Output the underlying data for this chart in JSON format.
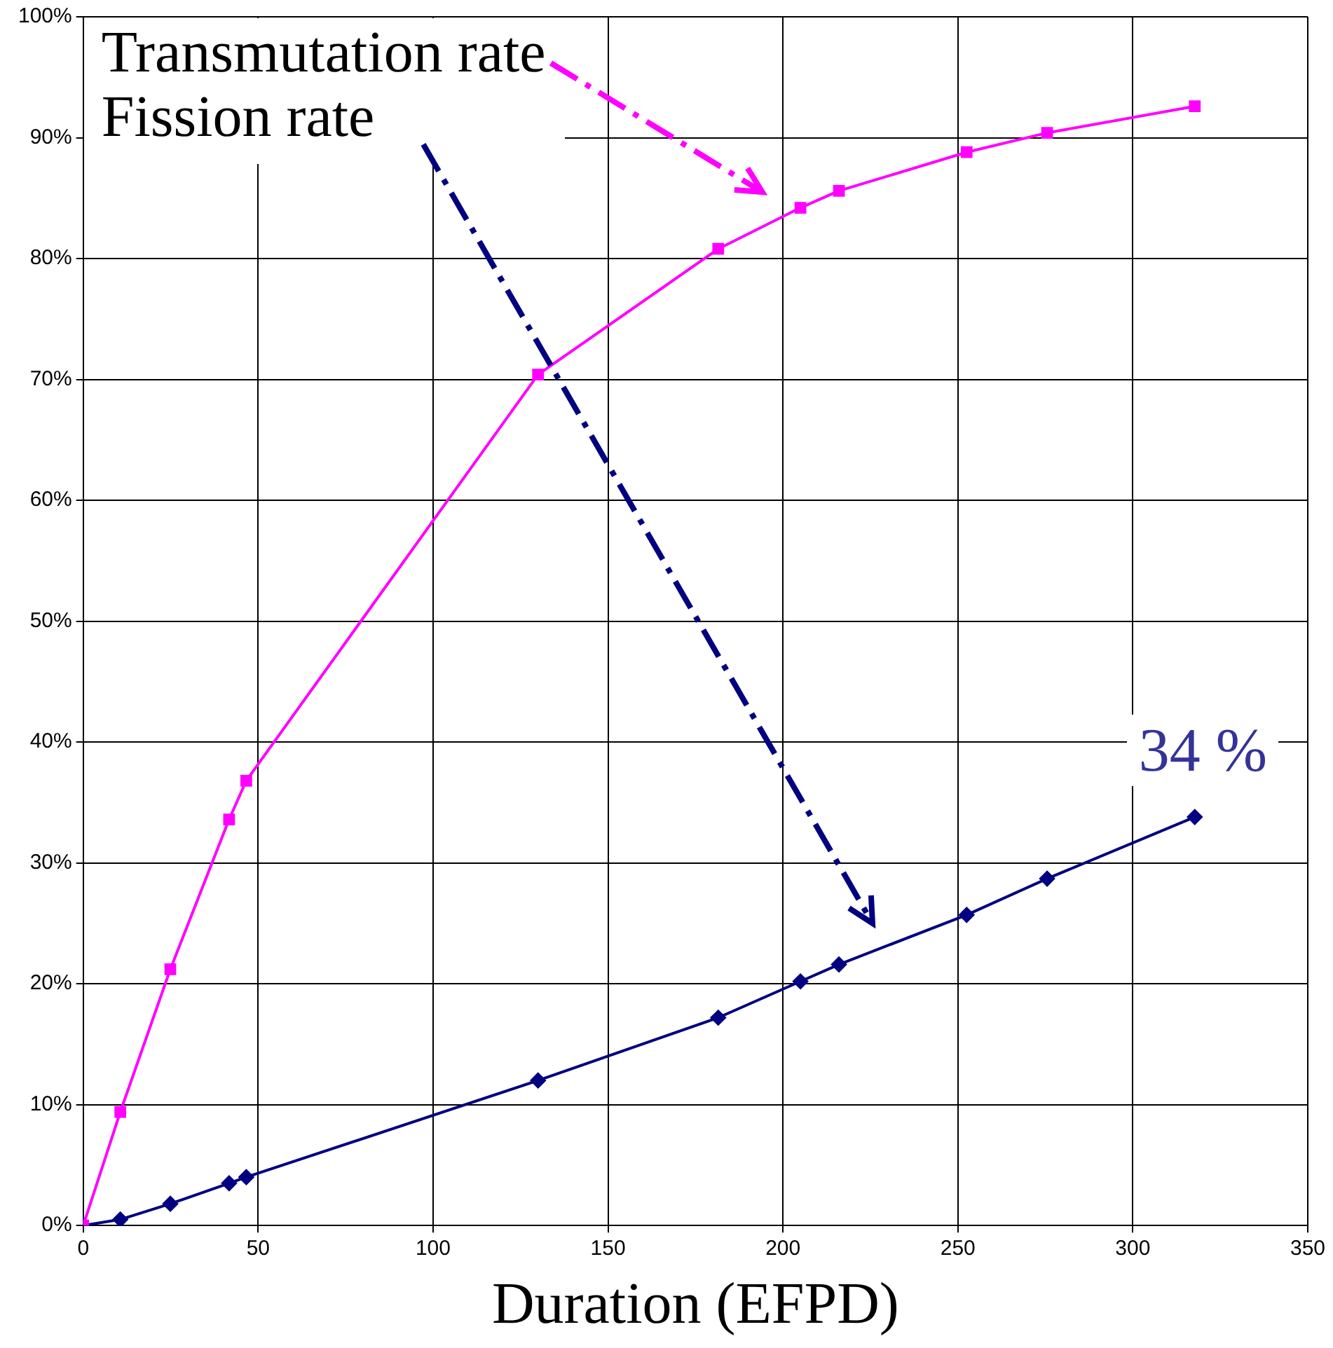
{
  "chart_data": {
    "type": "line",
    "xlabel": "Duration (EFPD)",
    "xlim": [
      0,
      350
    ],
    "xticks": [
      0,
      50,
      100,
      150,
      200,
      250,
      300,
      350
    ],
    "ylim": [
      0,
      100
    ],
    "yticks": [
      {
        "value": 0,
        "label": "0%"
      },
      {
        "value": 10,
        "label": "10%"
      },
      {
        "value": 20,
        "label": "20%"
      },
      {
        "value": 30,
        "label": "30%"
      },
      {
        "value": 40,
        "label": "40%"
      },
      {
        "value": 50,
        "label": "50%"
      },
      {
        "value": 60,
        "label": "60%"
      },
      {
        "value": 70,
        "label": "70%"
      },
      {
        "value": 80,
        "label": "80%"
      },
      {
        "value": 90,
        "label": "90%"
      },
      {
        "value": 100,
        "label": "100%"
      }
    ],
    "x": [
      0,
      10.6,
      24.9,
      41.7,
      46.6,
      130,
      181.5,
      205,
      216,
      252.5,
      275.5,
      317.7
    ],
    "series": [
      {
        "name": "Transmutation rate",
        "color": "#ff00ff",
        "marker": "square",
        "values": [
          0,
          9.4,
          21.2,
          33.6,
          36.8,
          70.4,
          80.8,
          84.2,
          85.6,
          88.8,
          90.4,
          92.6
        ]
      },
      {
        "name": "Fission rate",
        "color": "#000080",
        "marker": "diamond",
        "values": [
          0,
          0.5,
          1.8,
          3.5,
          4.0,
          12.0,
          17.2,
          20.2,
          21.6,
          25.7,
          28.7,
          33.8
        ]
      }
    ],
    "annotations": [
      {
        "text": "34 %",
        "x": 317.7,
        "y": 33.8
      }
    ],
    "grid": true,
    "legend": "top left",
    "line_style": "solid"
  }
}
